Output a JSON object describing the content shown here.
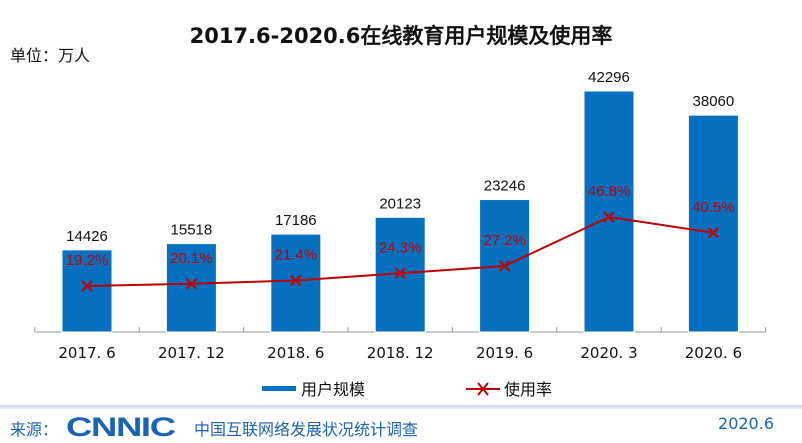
{
  "chart_data": {
    "type": "bar+line",
    "title": "2017.6-2020.6在线教育用户规模及使用率",
    "unit_label": "单位：万人",
    "categories": [
      "2017. 6",
      "2017. 12",
      "2018. 6",
      "2018. 12",
      "2019. 6",
      "2020. 3",
      "2020. 6"
    ],
    "series": [
      {
        "name": "用户规模",
        "type": "bar",
        "color": "#0670c0",
        "values": [
          14426,
          15518,
          17186,
          20123,
          23246,
          42296,
          38060
        ],
        "labels": [
          "14426",
          "15518",
          "17186",
          "20123",
          "23246",
          "42296",
          "38060"
        ]
      },
      {
        "name": "使用率",
        "type": "line",
        "color": "#c00000",
        "values": [
          19.2,
          20.1,
          21.4,
          24.3,
          27.2,
          46.8,
          40.5
        ],
        "labels": [
          "19.2%",
          "20.1%",
          "21.4%",
          "24.3%",
          "27.2%",
          "46.8%",
          "40.5%"
        ]
      }
    ],
    "legend": "bottom"
  },
  "footer": {
    "source_label": "来源：",
    "logo": "CNNIC",
    "org": "中国互联网络发展状况统计调查",
    "date": "2020.6"
  }
}
